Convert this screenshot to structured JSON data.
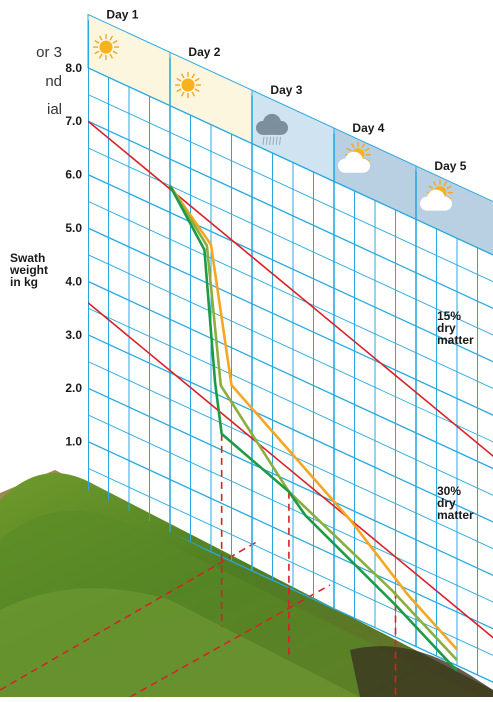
{
  "intro_fragments": [
    "or 3",
    "nd",
    "ial"
  ],
  "chart_data": {
    "type": "line",
    "ylabel": [
      "Swath",
      "weight",
      "in kg"
    ],
    "y_ticks": [
      "1.0",
      "2.0",
      "3.0",
      "4.0",
      "5.0",
      "6.0",
      "7.0",
      "8.0"
    ],
    "ylim": [
      0,
      8.5
    ],
    "days": [
      {
        "label": "Day 1",
        "weather": "sun-icon"
      },
      {
        "label": "Day 2",
        "weather": "sun-icon"
      },
      {
        "label": "Day 3",
        "weather": "rain-cloud-icon"
      },
      {
        "label": "Day 4",
        "weather": "sun-behind-cloud-icon"
      },
      {
        "label": "Day 5",
        "weather": "sun-behind-cloud-icon"
      }
    ],
    "reference_lines": [
      {
        "label": [
          "15%",
          "dry",
          "matter"
        ],
        "y_at_day0": 7.0,
        "slope_per_day": -0.56
      },
      {
        "label": [
          "30%",
          "dry",
          "matter"
        ],
        "y_at_day0": 3.6,
        "slope_per_day": -0.56
      }
    ],
    "series": [
      {
        "color": "#f5a623",
        "points": [
          [
            1.0,
            6.5
          ],
          [
            1.5,
            5.75
          ],
          [
            1.75,
            3.3
          ],
          [
            3.2,
            1.8
          ],
          [
            3.9,
            0.9
          ],
          [
            4.5,
            0.3
          ]
        ]
      },
      {
        "color": "#8cae3c",
        "points": [
          [
            1.0,
            6.5
          ],
          [
            1.45,
            5.7
          ],
          [
            1.62,
            3.2
          ],
          [
            2.45,
            1.8
          ],
          [
            3.7,
            0.85
          ],
          [
            4.5,
            0.1
          ]
        ]
      },
      {
        "color": "#1e9a46",
        "points": [
          [
            1.0,
            6.5
          ],
          [
            1.42,
            5.6
          ],
          [
            1.55,
            3.2
          ],
          [
            1.63,
            2.3
          ],
          [
            2.45,
            1.8
          ],
          [
            2.65,
            1.5
          ],
          [
            3.75,
            0.6
          ],
          [
            4.5,
            -0.1
          ]
        ]
      }
    ],
    "drop_lines_x": [
      1.63,
      2.45,
      3.75
    ],
    "colors": {
      "grid": "#29a8e0",
      "reference": "#d82027",
      "drop": "#d82027"
    }
  }
}
